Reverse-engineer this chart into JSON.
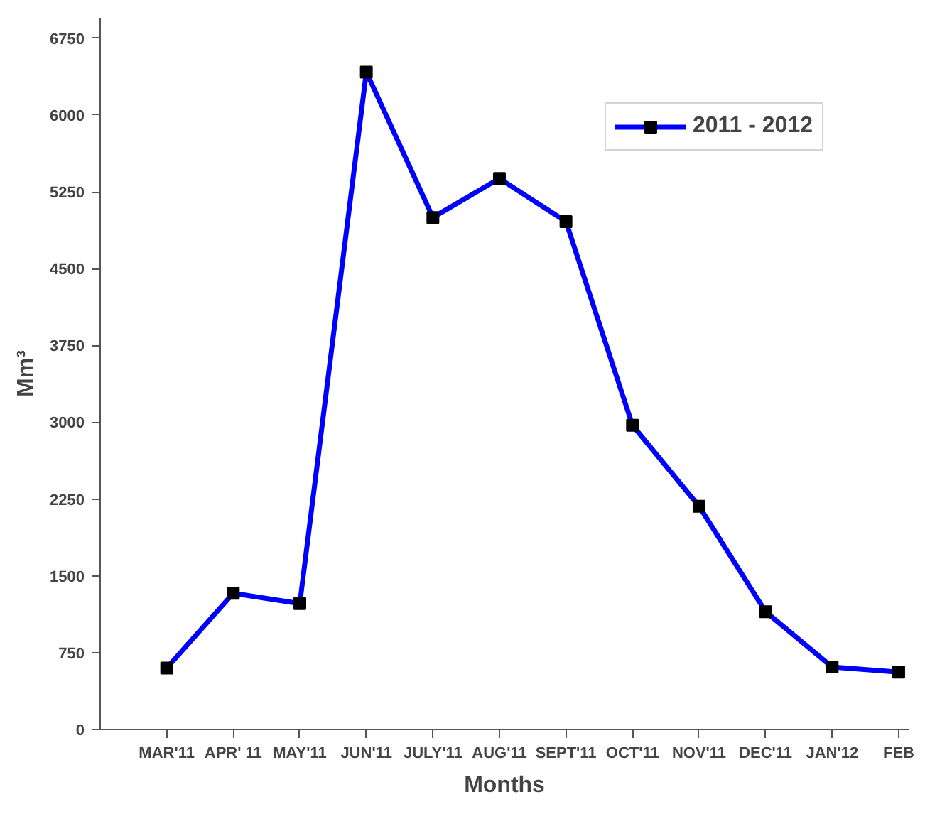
{
  "chart_data": {
    "type": "line",
    "xlabel": "Months",
    "ylabel": "Mm³",
    "categories": [
      "MAR'11",
      "APR' 11",
      "MAY'11",
      "JUN'11",
      "JULY'11",
      "AUG'11",
      "SEPT'11",
      "OCT'11",
      "NOV'11",
      "DEC'11",
      "JAN'12",
      "FEB"
    ],
    "series": [
      {
        "name": "2011 - 2012",
        "color": "#0000ff",
        "values": [
          600,
          1330,
          1230,
          6420,
          5000,
          5380,
          4960,
          2970,
          2180,
          1150,
          610,
          560
        ]
      }
    ],
    "ylim": [
      0,
      6950
    ],
    "yticks": [
      0,
      750,
      1500,
      2250,
      3000,
      3750,
      4500,
      5250,
      6000,
      6750
    ],
    "marker": "square",
    "line_style": "solid",
    "legend": "top right",
    "grid": false
  }
}
